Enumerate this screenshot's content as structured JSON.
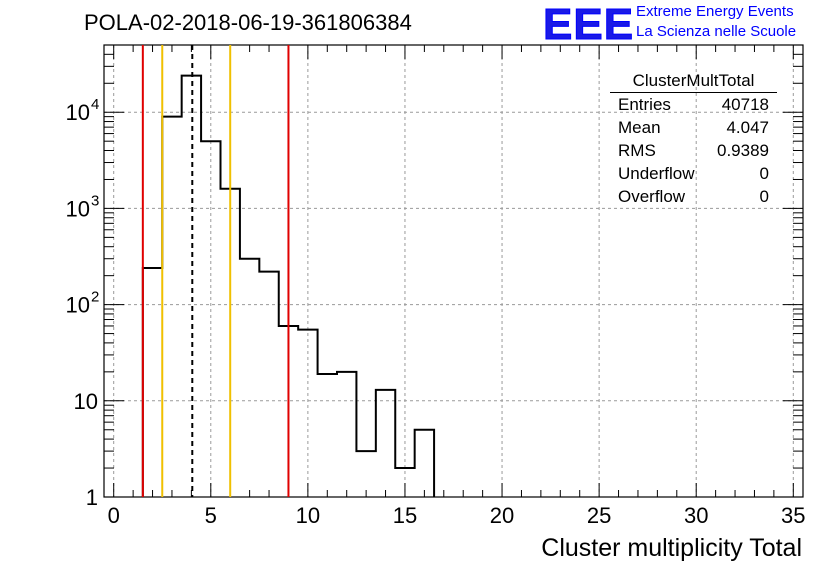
{
  "title": "POLA-02-2018-06-19-361806384",
  "logo": {
    "text": "EEE",
    "line1": "Extreme Energy Events",
    "line2": "La Scienza nelle Scuole",
    "color": "#0000ff"
  },
  "stats": {
    "name": "ClusterMultTotal",
    "rows": [
      {
        "label": "Entries",
        "value": "40718"
      },
      {
        "label": "Mean",
        "value": "4.047"
      },
      {
        "label": "RMS",
        "value": "0.9389"
      },
      {
        "label": "Underflow",
        "value": "0"
      },
      {
        "label": "Overflow",
        "value": "0"
      }
    ]
  },
  "chart_data": {
    "type": "histogram",
    "title": "POLA-02-2018-06-19-361806384",
    "xlabel": "Cluster multiplicity Total",
    "ylabel": "",
    "xlim": [
      -0.5,
      35.5
    ],
    "ylim": [
      1,
      50000
    ],
    "yscale": "log",
    "grid": true,
    "bin_width": 1,
    "bins": [
      {
        "lo": 1.5,
        "hi": 2.5,
        "count": 240
      },
      {
        "lo": 2.5,
        "hi": 3.5,
        "count": 9000
      },
      {
        "lo": 3.5,
        "hi": 4.5,
        "count": 24000
      },
      {
        "lo": 4.5,
        "hi": 5.5,
        "count": 5000
      },
      {
        "lo": 5.5,
        "hi": 6.5,
        "count": 1600
      },
      {
        "lo": 6.5,
        "hi": 7.5,
        "count": 300
      },
      {
        "lo": 7.5,
        "hi": 8.5,
        "count": 220
      },
      {
        "lo": 8.5,
        "hi": 9.5,
        "count": 60
      },
      {
        "lo": 9.5,
        "hi": 10.5,
        "count": 55
      },
      {
        "lo": 10.5,
        "hi": 11.5,
        "count": 19
      },
      {
        "lo": 11.5,
        "hi": 12.5,
        "count": 20
      },
      {
        "lo": 12.5,
        "hi": 13.5,
        "count": 3
      },
      {
        "lo": 13.5,
        "hi": 14.5,
        "count": 13
      },
      {
        "lo": 14.5,
        "hi": 15.5,
        "count": 2
      },
      {
        "lo": 15.5,
        "hi": 16.5,
        "count": 5
      }
    ],
    "x_ticks": [
      0,
      5,
      10,
      15,
      20,
      25,
      30,
      35
    ],
    "y_ticks": [
      {
        "value": 1,
        "label": "1"
      },
      {
        "value": 10,
        "label": "10"
      },
      {
        "value": 100,
        "label": "10",
        "exp": "2"
      },
      {
        "value": 1000,
        "label": "10",
        "exp": "3"
      },
      {
        "value": 10000,
        "label": "10",
        "exp": "4"
      }
    ],
    "vlines": [
      {
        "x": 1.5,
        "color": "#e00000",
        "style": "solid"
      },
      {
        "x": 2.5,
        "color": "#f0c000",
        "style": "solid"
      },
      {
        "x": 4.047,
        "color": "#000000",
        "style": "dashed"
      },
      {
        "x": 6.0,
        "color": "#f0c000",
        "style": "solid"
      },
      {
        "x": 9.0,
        "color": "#e00000",
        "style": "solid"
      }
    ]
  }
}
